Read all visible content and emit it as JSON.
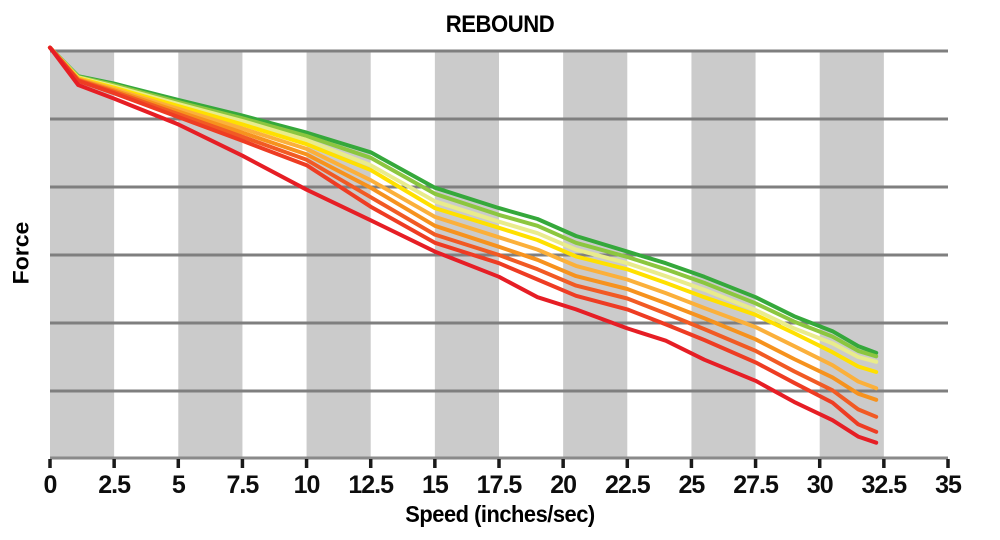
{
  "styles": {
    "background": "#ffffff",
    "band_color": "#cbcbcb",
    "gridline_color": "#7f7f7f",
    "axis_color": "#8a8a8a",
    "tick_color": "#1a1a1a",
    "text_color": "#000000",
    "line_width": 4
  },
  "chart_data": {
    "type": "line",
    "title": "REBOUND",
    "xlabel": "Speed (inches/sec)",
    "ylabel": "Force",
    "xlim": [
      0,
      35
    ],
    "ylim": [
      0,
      6.2
    ],
    "x_ticks": [
      0,
      2.5,
      5,
      7.5,
      10,
      12.5,
      15,
      17.5,
      20,
      22.5,
      25,
      27.5,
      30,
      32.5,
      35
    ],
    "x_tick_labels": [
      "0",
      "2.5",
      "5",
      "7.5",
      "10",
      "12.5",
      "15",
      "17.5",
      "20",
      "22.5",
      "25",
      "27.5",
      "30",
      "32.5",
      "35"
    ],
    "y_gridlines": [
      0,
      1,
      2,
      3,
      4,
      5,
      6
    ],
    "y_tick_labels_shown": false,
    "grid": "horizontal",
    "legend": "none",
    "shaded_bands_x": [
      [
        0,
        2.5
      ],
      [
        5,
        7.5
      ],
      [
        10,
        12.5
      ],
      [
        15,
        17.5
      ],
      [
        20,
        22.5
      ],
      [
        25,
        27.5
      ],
      [
        30,
        32.5
      ]
    ],
    "x": [
      0,
      1.1,
      2.5,
      5,
      7.5,
      10,
      12.5,
      15,
      17.5,
      19,
      20.5,
      22.5,
      24,
      25.5,
      27.5,
      29,
      30.5,
      31.5,
      32.2
    ],
    "series": [
      {
        "name": "green",
        "color": "#35a83b",
        "values": [
          6.05,
          5.63,
          5.52,
          5.28,
          5.05,
          4.8,
          4.51,
          3.99,
          3.69,
          3.53,
          3.28,
          3.05,
          2.88,
          2.68,
          2.38,
          2.1,
          1.88,
          1.66,
          1.56
        ]
      },
      {
        "name": "light-green",
        "color": "#8cc63f",
        "values": [
          6.05,
          5.62,
          5.5,
          5.25,
          5.01,
          4.75,
          4.43,
          3.9,
          3.59,
          3.43,
          3.18,
          2.97,
          2.79,
          2.59,
          2.29,
          2.02,
          1.8,
          1.59,
          1.51
        ]
      },
      {
        "name": "pale-yellow",
        "color": "#e9ec8c",
        "values": [
          6.05,
          5.61,
          5.48,
          5.22,
          4.97,
          4.69,
          4.32,
          3.79,
          3.49,
          3.32,
          3.08,
          2.88,
          2.69,
          2.49,
          2.19,
          1.92,
          1.7,
          1.5,
          1.43
        ]
      },
      {
        "name": "yellow",
        "color": "#ffe000",
        "values": [
          6.05,
          5.6,
          5.46,
          5.19,
          4.92,
          4.63,
          4.25,
          3.69,
          3.4,
          3.22,
          2.98,
          2.79,
          2.59,
          2.38,
          2.12,
          1.85,
          1.57,
          1.36,
          1.28
        ]
      },
      {
        "name": "amber",
        "color": "#fbb03b",
        "values": [
          6.05,
          5.59,
          5.44,
          5.15,
          4.86,
          4.56,
          4.1,
          3.56,
          3.26,
          3.08,
          2.84,
          2.64,
          2.44,
          2.22,
          1.94,
          1.66,
          1.38,
          1.14,
          1.04
        ]
      },
      {
        "name": "orange",
        "color": "#f6921e",
        "values": [
          6.05,
          5.58,
          5.42,
          5.11,
          4.8,
          4.48,
          3.99,
          3.43,
          3.12,
          2.93,
          2.69,
          2.5,
          2.29,
          2.07,
          1.76,
          1.47,
          1.2,
          0.96,
          0.87
        ]
      },
      {
        "name": "dark-orange",
        "color": "#f15a24",
        "values": [
          6.05,
          5.57,
          5.4,
          5.07,
          4.74,
          4.4,
          3.85,
          3.3,
          3.0,
          2.79,
          2.55,
          2.36,
          2.14,
          1.91,
          1.59,
          1.29,
          1.01,
          0.73,
          0.62
        ]
      },
      {
        "name": "red-orange",
        "color": "#ee3c23",
        "values": [
          6.05,
          5.56,
          5.38,
          5.03,
          4.68,
          4.32,
          3.71,
          3.18,
          2.88,
          2.64,
          2.4,
          2.2,
          1.98,
          1.75,
          1.42,
          1.12,
          0.83,
          0.51,
          0.4
        ]
      },
      {
        "name": "red",
        "color": "#e61e25",
        "values": [
          6.05,
          5.5,
          5.3,
          4.92,
          4.46,
          3.96,
          3.51,
          3.05,
          2.68,
          2.38,
          2.2,
          1.92,
          1.74,
          1.46,
          1.15,
          0.84,
          0.57,
          0.33,
          0.24
        ]
      }
    ]
  }
}
